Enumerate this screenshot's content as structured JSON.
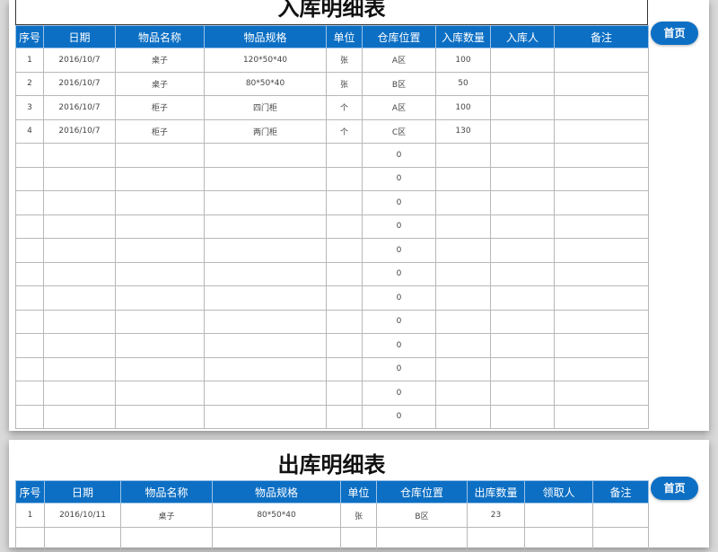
{
  "inbound": {
    "title": "入库明细表",
    "home_label": "首页",
    "headers": [
      "序号",
      "日期",
      "物品名称",
      "物品规格",
      "单位",
      "仓库位置",
      "入库数量",
      "入库人",
      "备注"
    ],
    "rows": [
      [
        "1",
        "2016/10/7",
        "桌子",
        "120*50*40",
        "张",
        "A区",
        "100",
        "",
        ""
      ],
      [
        "2",
        "2016/10/7",
        "桌子",
        "80*50*40",
        "张",
        "B区",
        "50",
        "",
        ""
      ],
      [
        "3",
        "2016/10/7",
        "柜子",
        "四门柜",
        "个",
        "A区",
        "100",
        "",
        ""
      ],
      [
        "4",
        "2016/10/7",
        "柜子",
        "两门柜",
        "个",
        "C区",
        "130",
        "",
        ""
      ],
      [
        "",
        "",
        "",
        "",
        "",
        "0",
        "",
        "",
        ""
      ],
      [
        "",
        "",
        "",
        "",
        "",
        "0",
        "",
        "",
        ""
      ],
      [
        "",
        "",
        "",
        "",
        "",
        "0",
        "",
        "",
        ""
      ],
      [
        "",
        "",
        "",
        "",
        "",
        "0",
        "",
        "",
        ""
      ],
      [
        "",
        "",
        "",
        "",
        "",
        "0",
        "",
        "",
        ""
      ],
      [
        "",
        "",
        "",
        "",
        "",
        "0",
        "",
        "",
        ""
      ],
      [
        "",
        "",
        "",
        "",
        "",
        "0",
        "",
        "",
        ""
      ],
      [
        "",
        "",
        "",
        "",
        "",
        "0",
        "",
        "",
        ""
      ],
      [
        "",
        "",
        "",
        "",
        "",
        "0",
        "",
        "",
        ""
      ],
      [
        "",
        "",
        "",
        "",
        "",
        "0",
        "",
        "",
        ""
      ],
      [
        "",
        "",
        "",
        "",
        "",
        "0",
        "",
        "",
        ""
      ],
      [
        "",
        "",
        "",
        "",
        "",
        "0",
        "",
        "",
        ""
      ]
    ]
  },
  "outbound": {
    "title": "出库明细表",
    "home_label": "首页",
    "headers": [
      "序号",
      "日期",
      "物品名称",
      "物品规格",
      "单位",
      "仓库位置",
      "出库数量",
      "领取人",
      "备注"
    ],
    "rows": [
      [
        "1",
        "2016/10/11",
        "桌子",
        "80*50*40",
        "张",
        "B区",
        "23",
        "",
        ""
      ],
      [
        "",
        "",
        "",
        "",
        "",
        "",
        "",
        "",
        ""
      ]
    ]
  }
}
